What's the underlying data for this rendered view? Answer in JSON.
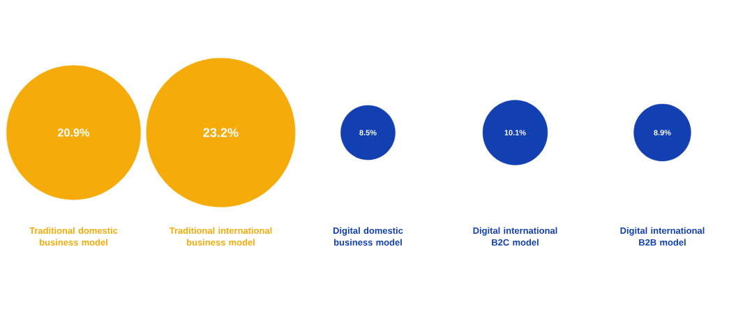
{
  "chart_data": {
    "type": "other",
    "categories": [
      "Traditional domestic business model",
      "Traditional international business model",
      "Digital domestic business model",
      "Digital international B2C model",
      "Digital international B2B model"
    ],
    "values": [
      20.9,
      23.2,
      8.5,
      10.1,
      8.9
    ],
    "colors": [
      "#f5ac0a",
      "#f5ac0a",
      "#1340b0",
      "#1340b0",
      "#1340b0"
    ],
    "value_labels": [
      "20.9%",
      "23.2%",
      "8.5%",
      "10.1%",
      "8.9%"
    ]
  }
}
